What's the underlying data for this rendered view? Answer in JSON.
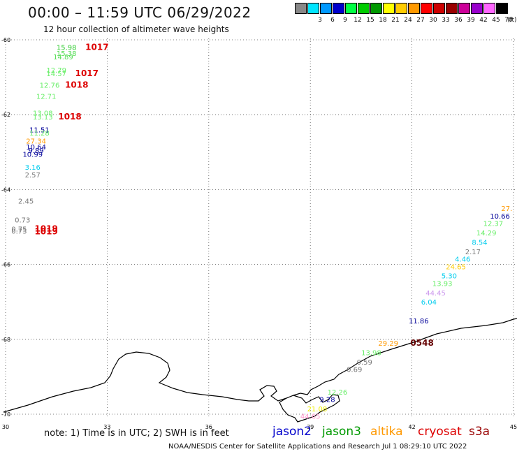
{
  "header": {
    "title": "00:00 – 11:59 UTC 06/29/2022",
    "subtitle": "12 hour collection of altimeter wave heights"
  },
  "color_scale": {
    "swatches": [
      {
        "label": "",
        "color": "#888888"
      },
      {
        "label": "3",
        "color": "#00e5ff"
      },
      {
        "label": "6",
        "color": "#0099ff"
      },
      {
        "label": "9",
        "color": "#0000cc"
      },
      {
        "label": "12",
        "color": "#00ff44"
      },
      {
        "label": "15",
        "color": "#00cc00"
      },
      {
        "label": "18",
        "color": "#009900"
      },
      {
        "label": "21",
        "color": "#ffff00"
      },
      {
        "label": "24",
        "color": "#ffcc00"
      },
      {
        "label": "27",
        "color": "#ff9900"
      },
      {
        "label": "30",
        "color": "#ff0000"
      },
      {
        "label": "33",
        "color": "#cc0000"
      },
      {
        "label": "36",
        "color": "#990000"
      },
      {
        "label": "39",
        "color": "#cc0099"
      },
      {
        "label": "42",
        "color": "#9900cc"
      },
      {
        "label": "45",
        "color": "#ff66ff"
      },
      {
        "label": "70",
        "color": "#000000"
      }
    ],
    "unit": "(ft)"
  },
  "map": {
    "lon_ticks": [
      "30",
      "33",
      "36",
      "39",
      "42",
      "45"
    ],
    "lat_ticks": [
      "-60",
      "-62",
      "-64",
      "-66",
      "-68",
      "-70"
    ],
    "observations": [
      {
        "t": "15.98",
        "c": "#33cc33",
        "lon": 31.8,
        "lat": -60.2
      },
      {
        "t": "1017",
        "c": "#dd0000",
        "lon": 32.7,
        "lat": -60.2,
        "bold": true
      },
      {
        "t": "15.38",
        "c": "#55dd55",
        "lon": 31.8,
        "lat": -60.35
      },
      {
        "t": "14.89",
        "c": "#55dd55",
        "lon": 31.7,
        "lat": -60.45
      },
      {
        "t": "12.79",
        "c": "#66ee66",
        "lon": 31.5,
        "lat": -60.8
      },
      {
        "t": "14.57",
        "c": "#66ee66",
        "lon": 31.5,
        "lat": -60.9
      },
      {
        "t": "1017",
        "c": "#dd0000",
        "lon": 32.4,
        "lat": -60.9,
        "bold": true
      },
      {
        "t": "12.76",
        "c": "#66ee66",
        "lon": 31.3,
        "lat": -61.2
      },
      {
        "t": "1018",
        "c": "#dd0000",
        "lon": 32.1,
        "lat": -61.2,
        "bold": true
      },
      {
        "t": "12.71",
        "c": "#66ee66",
        "lon": 31.2,
        "lat": -61.5
      },
      {
        "t": "13.08",
        "c": "#66ee66",
        "lon": 31.1,
        "lat": -61.95
      },
      {
        "t": "13.13",
        "c": "#66ee66",
        "lon": 31.1,
        "lat": -62.05
      },
      {
        "t": "1018",
        "c": "#dd0000",
        "lon": 31.9,
        "lat": -62.05,
        "bold": true
      },
      {
        "t": "11.51",
        "c": "#000099",
        "lon": 31.0,
        "lat": -62.4
      },
      {
        "t": "11.28",
        "c": "#66ee66",
        "lon": 31.0,
        "lat": -62.48
      },
      {
        "t": "27.34",
        "c": "#ff9900",
        "lon": 30.9,
        "lat": -62.7
      },
      {
        "t": "10.64",
        "c": "#000099",
        "lon": 30.9,
        "lat": -62.85
      },
      {
        "t": "9.89",
        "c": "#000099",
        "lon": 30.9,
        "lat": -62.95
      },
      {
        "t": "10.99",
        "c": "#000099",
        "lon": 30.8,
        "lat": -63.05
      },
      {
        "t": "3.16",
        "c": "#00ccee",
        "lon": 30.8,
        "lat": -63.4
      },
      {
        "t": "2.57",
        "c": "#777777",
        "lon": 30.8,
        "lat": -63.6
      },
      {
        "t": "2.45",
        "c": "#777777",
        "lon": 30.6,
        "lat": -64.3
      },
      {
        "t": "0.73",
        "c": "#777777",
        "lon": 30.5,
        "lat": -64.8
      },
      {
        "t": "0.75",
        "c": "#777777",
        "lon": 30.4,
        "lat": -65.05
      },
      {
        "t": "0.73",
        "c": "#777777",
        "lon": 30.4,
        "lat": -65.1
      },
      {
        "t": "1019",
        "c": "#dd0000",
        "lon": 31.2,
        "lat": -65.05,
        "bold": true
      },
      {
        "t": "1019",
        "c": "#dd0000",
        "lon": 31.2,
        "lat": -65.12,
        "bold": true
      },
      {
        "t": "27.",
        "c": "#ff9900",
        "lon": 44.8,
        "lat": -64.5
      },
      {
        "t": "10.66",
        "c": "#000099",
        "lon": 44.6,
        "lat": -64.7
      },
      {
        "t": "12.37",
        "c": "#66ee66",
        "lon": 44.4,
        "lat": -64.9
      },
      {
        "t": "14.29",
        "c": "#66ee66",
        "lon": 44.2,
        "lat": -65.15
      },
      {
        "t": "8.54",
        "c": "#00ccee",
        "lon": 44.0,
        "lat": -65.4
      },
      {
        "t": "2.17",
        "c": "#777777",
        "lon": 43.8,
        "lat": -65.65
      },
      {
        "t": "4.46",
        "c": "#00ccee",
        "lon": 43.5,
        "lat": -65.85
      },
      {
        "t": "24.65",
        "c": "#ffcc00",
        "lon": 43.3,
        "lat": -66.05
      },
      {
        "t": "5.30",
        "c": "#00ccee",
        "lon": 43.1,
        "lat": -66.3
      },
      {
        "t": "13.93",
        "c": "#66ee66",
        "lon": 42.9,
        "lat": -66.5
      },
      {
        "t": "44.45",
        "c": "#cc99ee",
        "lon": 42.7,
        "lat": -66.75
      },
      {
        "t": "6.04",
        "c": "#00ccee",
        "lon": 42.5,
        "lat": -67.0
      },
      {
        "t": "11.86",
        "c": "#000099",
        "lon": 42.2,
        "lat": -67.5
      },
      {
        "t": "29.29",
        "c": "#ff9900",
        "lon": 41.3,
        "lat": -68.1
      },
      {
        "t": "0548",
        "c": "#660000",
        "lon": 42.3,
        "lat": -68.1,
        "bold": true
      },
      {
        "t": "13.98",
        "c": "#66ee66",
        "lon": 40.8,
        "lat": -68.35
      },
      {
        "t": "0.59",
        "c": "#777777",
        "lon": 40.6,
        "lat": -68.6
      },
      {
        "t": "0.69",
        "c": "#777777",
        "lon": 40.3,
        "lat": -68.8
      },
      {
        "t": "12.26",
        "c": "#66ee66",
        "lon": 39.8,
        "lat": -69.4
      },
      {
        "t": "9.28",
        "c": "#000099",
        "lon": 39.5,
        "lat": -69.6
      },
      {
        "t": "21.08",
        "c": "#eeee00",
        "lon": 39.2,
        "lat": -69.85
      },
      {
        "t": "44.65",
        "c": "#ff99cc",
        "lon": 39.0,
        "lat": -70.05
      }
    ]
  },
  "legend_note": "note:  1) Time is in UTC;  2) SWH is in feet",
  "satellites": [
    {
      "name": "jason2",
      "color": "#0000cc"
    },
    {
      "name": "jason3",
      "color": "#009900"
    },
    {
      "name": "altika",
      "color": "#ff9900"
    },
    {
      "name": "cryosat",
      "color": "#dd0000"
    },
    {
      "name": "s3a",
      "color": "#990000"
    }
  ],
  "footer": "NOAA/NESDIS Center for Satellite Applications and Research    Jul  1 08:29:10 UTC 2022"
}
